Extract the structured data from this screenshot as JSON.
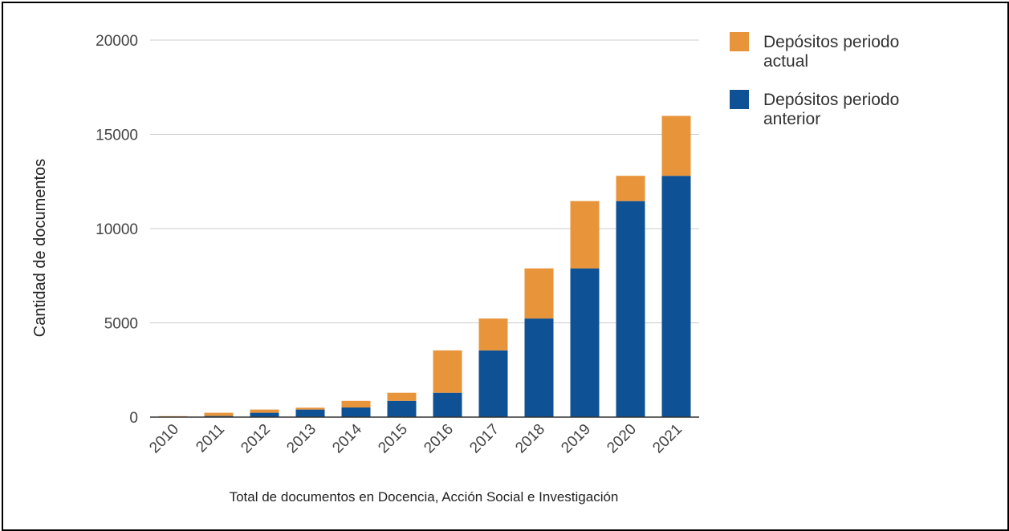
{
  "chart_data": {
    "type": "bar",
    "stacked": true,
    "categories": [
      "2010",
      "2011",
      "2012",
      "2013",
      "2014",
      "2015",
      "2016",
      "2017",
      "2018",
      "2019",
      "2020",
      "2021"
    ],
    "series": [
      {
        "name": "Depósitos periodo anterior",
        "color": "#0e5295",
        "values": [
          10,
          60,
          230,
          400,
          510,
          860,
          1290,
          3540,
          5230,
          7890,
          11460,
          12800
        ]
      },
      {
        "name": "Depósitos periodo actual",
        "color": "#e8943a",
        "values": [
          40,
          170,
          170,
          100,
          350,
          430,
          2250,
          1690,
          2660,
          3570,
          1340,
          3180
        ]
      }
    ],
    "title": "",
    "xlabel": "Total de documentos en Docencia, Acción Social e Investigación",
    "ylabel": "Cantidad de documentos",
    "ylim": [
      0,
      20000
    ],
    "yticks": [
      "0",
      "5000",
      "10000",
      "15000",
      "20000"
    ],
    "grid": true,
    "legend_position": "right"
  }
}
